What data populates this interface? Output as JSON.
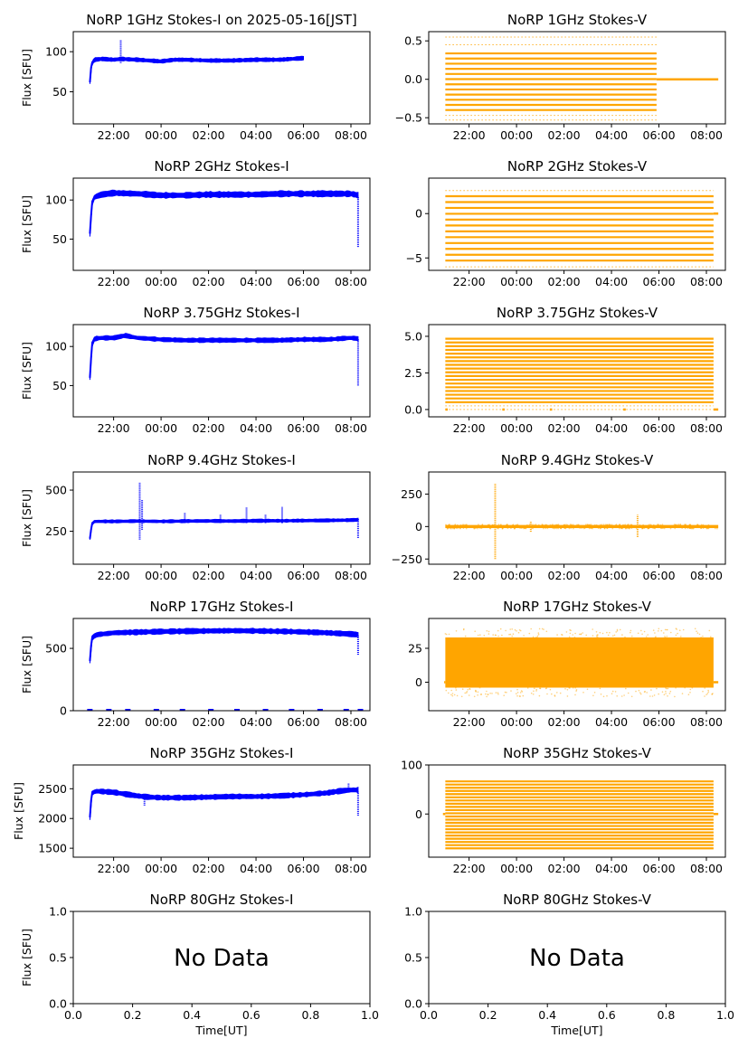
{
  "figure": {
    "x_label": "Time[UT]",
    "y_label": "Flux [SFU]",
    "time_ticks": [
      "22:00",
      "00:00",
      "02:00",
      "04:00",
      "06:00",
      "08:00"
    ],
    "no_data_text": "No Data",
    "colors": {
      "stokes_i": "#0000ff",
      "stokes_v": "#ffa500",
      "axes": "#000000",
      "background": "#ffffff"
    }
  },
  "chart_data": [
    {
      "id": "1ghz-i",
      "type": "scatter",
      "title": "NoRP 1GHz Stokes-I on 2025-05-16[JST]",
      "ylabel": "Flux [SFU]",
      "ylim": [
        10,
        125
      ],
      "yticks": [
        50,
        100
      ],
      "xlim_hours": [
        20.3,
        32.8
      ],
      "xticks": [
        "22:00",
        "00:00",
        "02:00",
        "04:00",
        "06:00",
        "08:00"
      ],
      "series": [
        {
          "style": "trace",
          "color": "#0000ff",
          "x": [
            21.0,
            21.05,
            21.1,
            21.2,
            21.5,
            22.0,
            22.3,
            23.0,
            23.5,
            24.0,
            24.3,
            24.6,
            25.0,
            26.0,
            27.0,
            28.0,
            29.0,
            29.5,
            30.0
          ],
          "y": [
            62,
            80,
            87,
            90,
            91,
            90,
            91,
            90,
            89,
            88,
            89,
            90,
            90,
            89,
            89,
            90,
            90,
            91,
            92
          ],
          "spread": 2.5
        }
      ],
      "spikes": [
        {
          "x": 22.3,
          "lo": 86,
          "hi": 115
        }
      ]
    },
    {
      "id": "1ghz-v",
      "type": "scatter",
      "title": "NoRP 1GHz Stokes-V",
      "ylim": [
        -0.58,
        0.62
      ],
      "yticks": [
        -0.5,
        0.0,
        0.5
      ],
      "xlim_hours": [
        20.3,
        32.8
      ],
      "xticks": [
        "22:00",
        "00:00",
        "02:00",
        "04:00",
        "06:00",
        "08:00"
      ],
      "series": [
        {
          "style": "bands",
          "color": "#ffa500",
          "x_start": 21.0,
          "x_end": 29.9,
          "y_min": -0.4,
          "y_max": 0.4,
          "step": 0.067,
          "sparse_levels": [
            0.45,
            0.55,
            -0.47,
            -0.53
          ]
        }
      ],
      "tail_line": {
        "x_start": 29.9,
        "x_end": 32.5,
        "y": 0.0
      }
    },
    {
      "id": "2ghz-i",
      "type": "scatter",
      "title": "NoRP 2GHz Stokes-I",
      "ylabel": "Flux [SFU]",
      "ylim": [
        10,
        128
      ],
      "yticks": [
        50,
        100
      ],
      "xlim_hours": [
        20.3,
        32.8
      ],
      "xticks": [
        "22:00",
        "00:00",
        "02:00",
        "04:00",
        "06:00",
        "08:00"
      ],
      "series": [
        {
          "style": "trace",
          "color": "#0000ff",
          "x": [
            21.0,
            21.05,
            21.1,
            21.2,
            21.5,
            22.0,
            23.0,
            24.0,
            25.0,
            26.0,
            27.0,
            28.0,
            29.0,
            30.0,
            31.0,
            32.0,
            32.3
          ],
          "y": [
            57,
            80,
            98,
            104,
            107,
            109,
            108,
            106,
            106,
            107,
            107,
            107,
            108,
            108,
            108,
            108,
            106
          ],
          "spread": 4
        }
      ],
      "spikes": [
        {
          "x": 32.3,
          "lo": 40,
          "hi": 105
        }
      ]
    },
    {
      "id": "2ghz-v",
      "type": "scatter",
      "title": "NoRP 2GHz Stokes-V",
      "ylim": [
        -6.4,
        4.0
      ],
      "yticks": [
        -5,
        0
      ],
      "xlim_hours": [
        20.3,
        32.8
      ],
      "xticks": [
        "22:00",
        "00:00",
        "02:00",
        "04:00",
        "06:00",
        "08:00"
      ],
      "series": [
        {
          "style": "bands",
          "color": "#ffa500",
          "x_start": 21.0,
          "x_end": 32.3,
          "y_min": -5.3,
          "y_max": 2.0,
          "step": 0.66,
          "sparse_levels": [
            2.6,
            -6.0
          ]
        }
      ],
      "tail_line": {
        "x_start": 32.3,
        "x_end": 32.5,
        "y": 0.0
      }
    },
    {
      "id": "375ghz-i",
      "type": "scatter",
      "title": "NoRP 3.75GHz Stokes-I",
      "ylabel": "Flux [SFU]",
      "ylim": [
        10,
        128
      ],
      "yticks": [
        50,
        100
      ],
      "xlim_hours": [
        20.3,
        32.8
      ],
      "xticks": [
        "22:00",
        "00:00",
        "02:00",
        "04:00",
        "06:00",
        "08:00"
      ],
      "series": [
        {
          "style": "trace",
          "color": "#0000ff",
          "x": [
            21.0,
            21.05,
            21.1,
            21.2,
            21.5,
            22.0,
            22.5,
            23.0,
            24.0,
            25.0,
            26.0,
            27.0,
            28.0,
            29.0,
            30.0,
            31.0,
            32.0,
            32.3
          ],
          "y": [
            60,
            85,
            105,
            110,
            111,
            111,
            114,
            111,
            109,
            108,
            108,
            108,
            108,
            108,
            109,
            109,
            111,
            110
          ],
          "spread": 3
        }
      ],
      "spikes": [
        {
          "x": 32.3,
          "lo": 50,
          "hi": 110
        }
      ]
    },
    {
      "id": "375ghz-v",
      "type": "scatter",
      "title": "NoRP 3.75GHz Stokes-V",
      "ylim": [
        -0.5,
        5.8
      ],
      "yticks": [
        0.0,
        2.5,
        5.0
      ],
      "xlim_hours": [
        20.3,
        32.8
      ],
      "xticks": [
        "22:00",
        "00:00",
        "02:00",
        "04:00",
        "06:00",
        "08:00"
      ],
      "series": [
        {
          "style": "bands",
          "color": "#ffa500",
          "x_start": 21.0,
          "x_end": 32.3,
          "y_min": 0.5,
          "y_max": 5.0,
          "step": 0.255,
          "sparse_levels": [
            0.25,
            0.0
          ]
        }
      ],
      "zero_segments": [
        [
          21.0,
          21.1
        ],
        [
          23.4,
          23.5
        ],
        [
          25.4,
          25.5
        ],
        [
          28.5,
          28.6
        ],
        [
          32.3,
          32.5
        ]
      ]
    },
    {
      "id": "94ghz-i",
      "type": "scatter",
      "title": "NoRP 9.4GHz Stokes-I",
      "ylabel": "Flux [SFU]",
      "ylim": [
        50,
        610
      ],
      "yticks": [
        250,
        500
      ],
      "xlim_hours": [
        20.3,
        32.8
      ],
      "xticks": [
        "22:00",
        "00:00",
        "02:00",
        "04:00",
        "06:00",
        "08:00"
      ],
      "series": [
        {
          "style": "trace",
          "color": "#0000ff",
          "x": [
            21.0,
            21.05,
            21.1,
            21.2,
            22.0,
            23.0,
            24.0,
            25.0,
            26.0,
            27.0,
            28.0,
            29.0,
            30.0,
            31.0,
            32.0,
            32.3
          ],
          "y": [
            205,
            260,
            300,
            310,
            310,
            312,
            310,
            312,
            313,
            312,
            314,
            314,
            315,
            316,
            318,
            320
          ],
          "spread": 10
        }
      ],
      "spikes": [
        {
          "x": 23.1,
          "lo": 200,
          "hi": 545
        },
        {
          "x": 23.2,
          "lo": 260,
          "hi": 440
        },
        {
          "x": 25.0,
          "lo": 300,
          "hi": 360
        },
        {
          "x": 26.5,
          "lo": 300,
          "hi": 355
        },
        {
          "x": 27.6,
          "lo": 300,
          "hi": 395
        },
        {
          "x": 28.4,
          "lo": 300,
          "hi": 350
        },
        {
          "x": 29.1,
          "lo": 300,
          "hi": 400
        },
        {
          "x": 32.3,
          "lo": 210,
          "hi": 330
        }
      ]
    },
    {
      "id": "94ghz-v",
      "type": "scatter",
      "title": "NoRP 9.4GHz Stokes-V",
      "ylim": [
        -290,
        420
      ],
      "yticks": [
        -250,
        0,
        250
      ],
      "xlim_hours": [
        20.3,
        32.8
      ],
      "xticks": [
        "22:00",
        "00:00",
        "02:00",
        "04:00",
        "06:00",
        "08:00"
      ],
      "series": [
        {
          "style": "band",
          "color": "#ffa500",
          "x_start": 21.0,
          "x_end": 32.5,
          "y_min": -12,
          "y_max": 12
        }
      ],
      "spikes": [
        {
          "x": 23.1,
          "lo": -250,
          "hi": 330
        },
        {
          "x": 24.6,
          "lo": -40,
          "hi": 40
        },
        {
          "x": 29.1,
          "lo": -80,
          "hi": 90
        }
      ]
    },
    {
      "id": "17ghz-i",
      "type": "scatter",
      "title": "NoRP 17GHz Stokes-I",
      "ylabel": "Flux [SFU]",
      "ylim": [
        0,
        740
      ],
      "yticks": [
        0,
        500
      ],
      "xlim_hours": [
        20.3,
        32.8
      ],
      "xticks": [
        "22:00",
        "00:00",
        "02:00",
        "04:00",
        "06:00",
        "08:00"
      ],
      "series": [
        {
          "style": "trace",
          "color": "#0000ff",
          "x": [
            21.0,
            21.05,
            21.1,
            21.3,
            22.0,
            23.0,
            24.0,
            25.0,
            26.0,
            27.0,
            28.0,
            29.0,
            30.0,
            31.0,
            32.0,
            32.3
          ],
          "y": [
            400,
            520,
            590,
            610,
            625,
            630,
            635,
            638,
            640,
            642,
            640,
            637,
            632,
            625,
            615,
            610
          ],
          "spread": 22
        }
      ],
      "spikes": [
        {
          "x": 32.3,
          "lo": 450,
          "hi": 610
        }
      ],
      "baseline_dots": [
        21.0,
        21.8,
        22.6,
        23.8,
        24.9,
        26.1,
        27.2,
        28.4,
        29.5,
        30.7,
        31.8,
        32.4
      ]
    },
    {
      "id": "17ghz-v",
      "type": "scatter",
      "title": "NoRP 17GHz Stokes-V",
      "ylim": [
        -21,
        47
      ],
      "yticks": [
        0,
        25
      ],
      "xlim_hours": [
        20.3,
        32.8
      ],
      "xticks": [
        "22:00",
        "00:00",
        "02:00",
        "04:00",
        "06:00",
        "08:00"
      ],
      "series": [
        {
          "style": "band",
          "color": "#ffa500",
          "x_start": 21.0,
          "x_end": 32.3,
          "y_min": -4,
          "y_max": 33
        }
      ],
      "tail_line": {
        "x_start": 32.3,
        "x_end": 32.5,
        "y": 0.0
      },
      "head_line": {
        "x_start": 20.95,
        "x_end": 21.0,
        "y": 0.0
      }
    },
    {
      "id": "35ghz-i",
      "type": "scatter",
      "title": "NoRP 35GHz Stokes-I",
      "ylabel": "Flux [SFU]",
      "ylim": [
        1350,
        2900
      ],
      "yticks": [
        1500,
        2000,
        2500
      ],
      "xlim_hours": [
        20.3,
        32.8
      ],
      "xticks": [
        "22:00",
        "00:00",
        "02:00",
        "04:00",
        "06:00",
        "08:00"
      ],
      "series": [
        {
          "style": "trace",
          "color": "#0000ff",
          "x": [
            21.0,
            21.05,
            21.1,
            21.3,
            22.0,
            22.5,
            23.0,
            23.5,
            24.0,
            25.0,
            26.0,
            27.0,
            28.0,
            29.0,
            30.0,
            31.0,
            31.5,
            32.0,
            32.3
          ],
          "y": [
            2020,
            2300,
            2440,
            2460,
            2440,
            2410,
            2380,
            2360,
            2350,
            2350,
            2360,
            2370,
            2370,
            2380,
            2400,
            2430,
            2460,
            2480,
            2480
          ],
          "spread": 45
        }
      ],
      "spikes": [
        {
          "x": 23.3,
          "lo": 2220,
          "hi": 2360
        },
        {
          "x": 32.3,
          "lo": 2050,
          "hi": 2450
        },
        {
          "x": 31.9,
          "lo": 2450,
          "hi": 2600
        }
      ]
    },
    {
      "id": "35ghz-v",
      "type": "scatter",
      "title": "NoRP 35GHz Stokes-V",
      "ylim": [
        -88,
        100
      ],
      "yticks": [
        0,
        100
      ],
      "xlim_hours": [
        20.3,
        32.8
      ],
      "xticks": [
        "22:00",
        "00:00",
        "02:00",
        "04:00",
        "06:00",
        "08:00"
      ],
      "series": [
        {
          "style": "bands",
          "color": "#ffa500",
          "x_start": 21.0,
          "x_end": 32.3,
          "y_min": -70,
          "y_max": 68,
          "step": 6.5,
          "sparse_levels": []
        }
      ],
      "tail_line": {
        "x_start": 32.3,
        "x_end": 32.5,
        "y": 0.0
      },
      "head_line": {
        "x_start": 20.9,
        "x_end": 21.0,
        "y": 0.0
      }
    },
    {
      "id": "80ghz-i",
      "type": "scatter",
      "title": "NoRP 80GHz Stokes-I",
      "ylabel": "Flux [SFU]",
      "xlabel": "Time[UT]",
      "xlim": [
        0,
        1
      ],
      "ylim": [
        0,
        1
      ],
      "xticks_num": [
        "0.0",
        "0.2",
        "0.4",
        "0.6",
        "0.8",
        "1.0"
      ],
      "yticks_num": [
        "0.0",
        "0.5",
        "1.0"
      ],
      "no_data": true,
      "series": []
    },
    {
      "id": "80ghz-v",
      "type": "scatter",
      "title": "NoRP 80GHz Stokes-V",
      "xlabel": "Time[UT]",
      "xlim": [
        0,
        1
      ],
      "ylim": [
        0,
        1
      ],
      "xticks_num": [
        "0.0",
        "0.2",
        "0.4",
        "0.6",
        "0.8",
        "1.0"
      ],
      "yticks_num": [
        "0.0",
        "0.5",
        "1.0"
      ],
      "no_data": true,
      "series": []
    }
  ]
}
